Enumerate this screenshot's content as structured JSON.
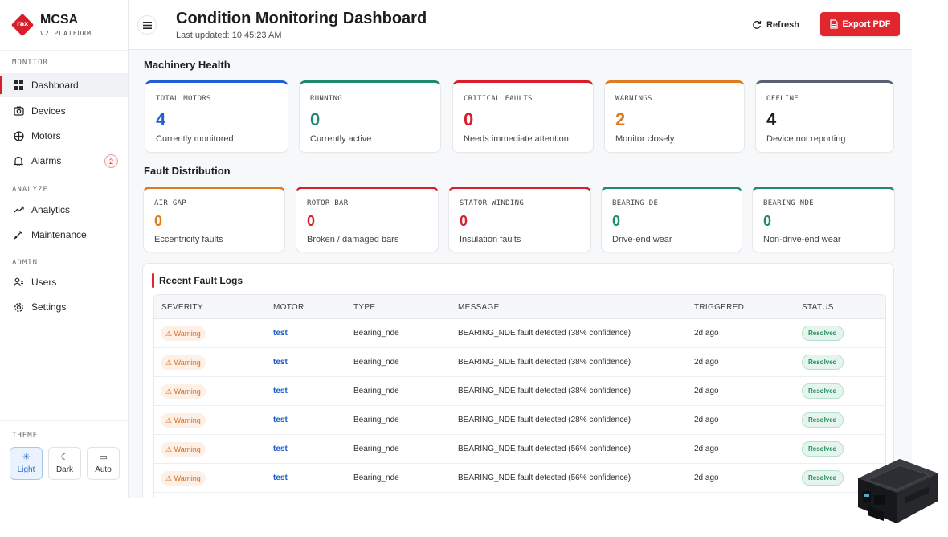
{
  "brand": {
    "logo_text": "rax",
    "name": "MCSA",
    "subtitle": "V2 PLATFORM"
  },
  "sidebar": {
    "sections": {
      "monitor": "MONITOR",
      "analyze": "ANALYZE",
      "admin": "ADMIN"
    },
    "items": [
      {
        "label": "Dashboard",
        "icon": "grid-icon",
        "active": true
      },
      {
        "label": "Devices",
        "icon": "device-icon"
      },
      {
        "label": "Motors",
        "icon": "motor-icon"
      },
      {
        "label": "Alarms",
        "icon": "bell-icon",
        "badge": "2"
      },
      {
        "label": "Analytics",
        "icon": "trend-icon"
      },
      {
        "label": "Maintenance",
        "icon": "wrench-icon"
      },
      {
        "label": "Users",
        "icon": "users-icon"
      },
      {
        "label": "Settings",
        "icon": "gear-icon"
      }
    ],
    "theme": {
      "label": "THEME",
      "options": [
        {
          "label": "Light",
          "icon": "sun-icon",
          "glyph": "☀",
          "selected": true
        },
        {
          "label": "Dark",
          "icon": "moon-icon",
          "glyph": "☾"
        },
        {
          "label": "Auto",
          "icon": "monitor-icon",
          "glyph": "▭"
        }
      ]
    }
  },
  "header": {
    "title": "Condition Monitoring Dashboard",
    "last_updated": "Last updated: 10:45:23 AM",
    "refresh_label": "Refresh",
    "export_label": "Export PDF"
  },
  "health": {
    "title": "Machinery Health",
    "cards": [
      {
        "label": "TOTAL MOTORS",
        "value": "4",
        "sub": "Currently monitored",
        "color": "#1f5fd1"
      },
      {
        "label": "RUNNING",
        "value": "0",
        "sub": "Currently active",
        "color": "#1f8a6e"
      },
      {
        "label": "CRITICAL FAULTS",
        "value": "0",
        "sub": "Needs immediate attention",
        "color": "#d81e2b"
      },
      {
        "label": "WARNINGS",
        "value": "2",
        "sub": "Monitor closely",
        "color": "#e07a1f"
      },
      {
        "label": "OFFLINE",
        "value": "4",
        "sub": "Device not reporting",
        "color": "#1b1d21",
        "top_color": "#5b5f73"
      }
    ]
  },
  "faults": {
    "title": "Fault Distribution",
    "cards": [
      {
        "label": "AIR GAP",
        "value": "0",
        "sub": "Eccentricity faults",
        "color": "#e07a1f"
      },
      {
        "label": "ROTOR BAR",
        "value": "0",
        "sub": "Broken / damaged bars",
        "color": "#d81e2b"
      },
      {
        "label": "STATOR WINDING",
        "value": "0",
        "sub": "Insulation faults",
        "color": "#d81e2b"
      },
      {
        "label": "BEARING DE",
        "value": "0",
        "sub": "Drive-end wear",
        "color": "#1f8a6e"
      },
      {
        "label": "BEARING NDE",
        "value": "0",
        "sub": "Non-drive-end wear",
        "color": "#1f8a6e"
      }
    ]
  },
  "logs": {
    "title": "Recent Fault Logs",
    "columns": [
      "SEVERITY",
      "MOTOR",
      "TYPE",
      "MESSAGE",
      "TRIGGERED",
      "STATUS"
    ],
    "rows": [
      {
        "severity": "⚠ Warning",
        "motor": "test",
        "type": "Bearing_nde",
        "message": "BEARING_NDE fault detected (38% confidence)",
        "triggered": "2d ago",
        "status": "Resolved"
      },
      {
        "severity": "⚠ Warning",
        "motor": "test",
        "type": "Bearing_nde",
        "message": "BEARING_NDE fault detected (38% confidence)",
        "triggered": "2d ago",
        "status": "Resolved"
      },
      {
        "severity": "⚠ Warning",
        "motor": "test",
        "type": "Bearing_nde",
        "message": "BEARING_NDE fault detected (38% confidence)",
        "triggered": "2d ago",
        "status": "Resolved"
      },
      {
        "severity": "⚠ Warning",
        "motor": "test",
        "type": "Bearing_nde",
        "message": "BEARING_NDE fault detected (28% confidence)",
        "triggered": "2d ago",
        "status": "Resolved"
      },
      {
        "severity": "⚠ Warning",
        "motor": "test",
        "type": "Bearing_nde",
        "message": "BEARING_NDE fault detected (56% confidence)",
        "triggered": "2d ago",
        "status": "Resolved"
      },
      {
        "severity": "⚠ Warning",
        "motor": "test",
        "type": "Bearing_nde",
        "message": "BEARING_NDE fault detected (56% confidence)",
        "triggered": "2d ago",
        "status": "Resolved"
      }
    ]
  }
}
